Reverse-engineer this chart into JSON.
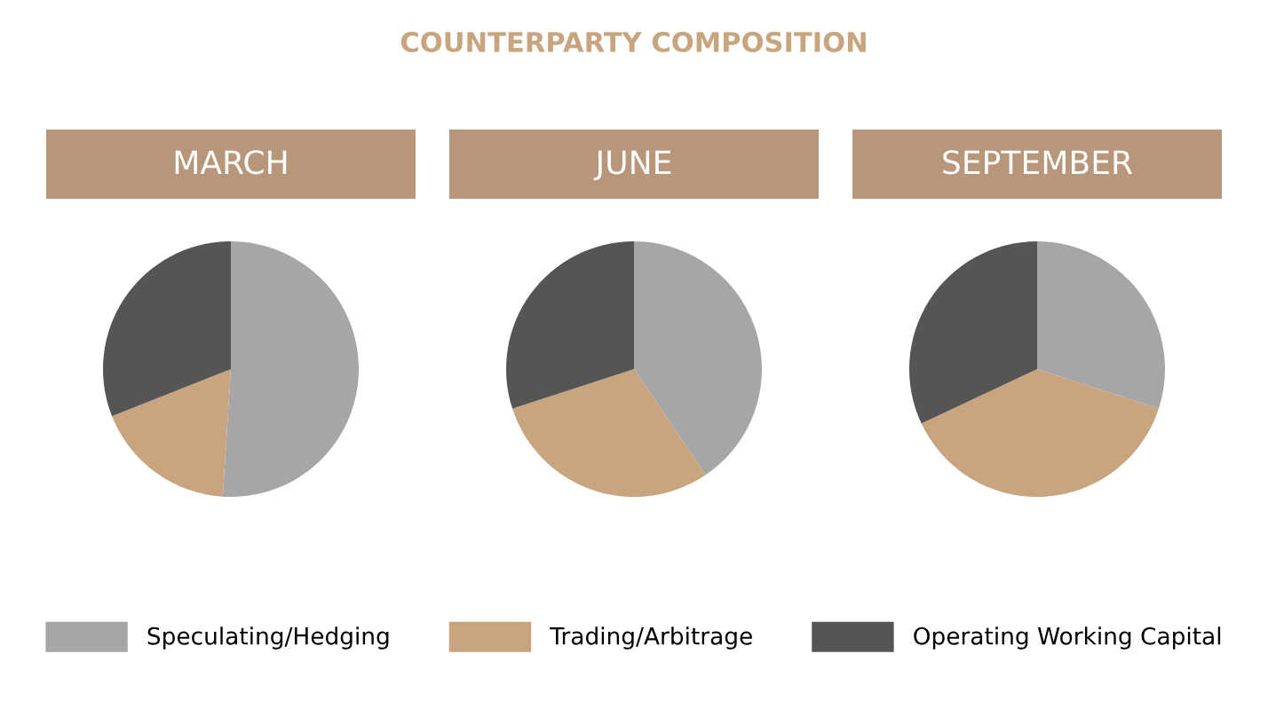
{
  "chart_data": [
    {
      "type": "pie",
      "title": "MARCH",
      "annotations": [
        "COUNTERPARTY COMPOSITION"
      ],
      "legend": "bottom",
      "categories": [
        "Speculating/Hedging",
        "Trading/Arbitrage",
        "Operating Working Capital"
      ],
      "values": [
        51,
        18,
        31
      ],
      "colors": [
        "#a6a6a6",
        "#c8a57f",
        "#545554"
      ]
    },
    {
      "type": "pie",
      "title": "JUNE",
      "categories": [
        null,
        null,
        null
      ],
      "values": [
        40.5,
        29.5,
        30
      ],
      "colors": [
        "#a6a6a6",
        "#c8a57f",
        "#545554"
      ]
    },
    {
      "type": "pie",
      "title": "SEPTEMBER",
      "categories": [
        null,
        null,
        null
      ],
      "values": [
        30,
        38,
        32
      ],
      "colors": [
        "#a6a6a6",
        "#c8a57f",
        "#545554"
      ]
    }
  ]
}
